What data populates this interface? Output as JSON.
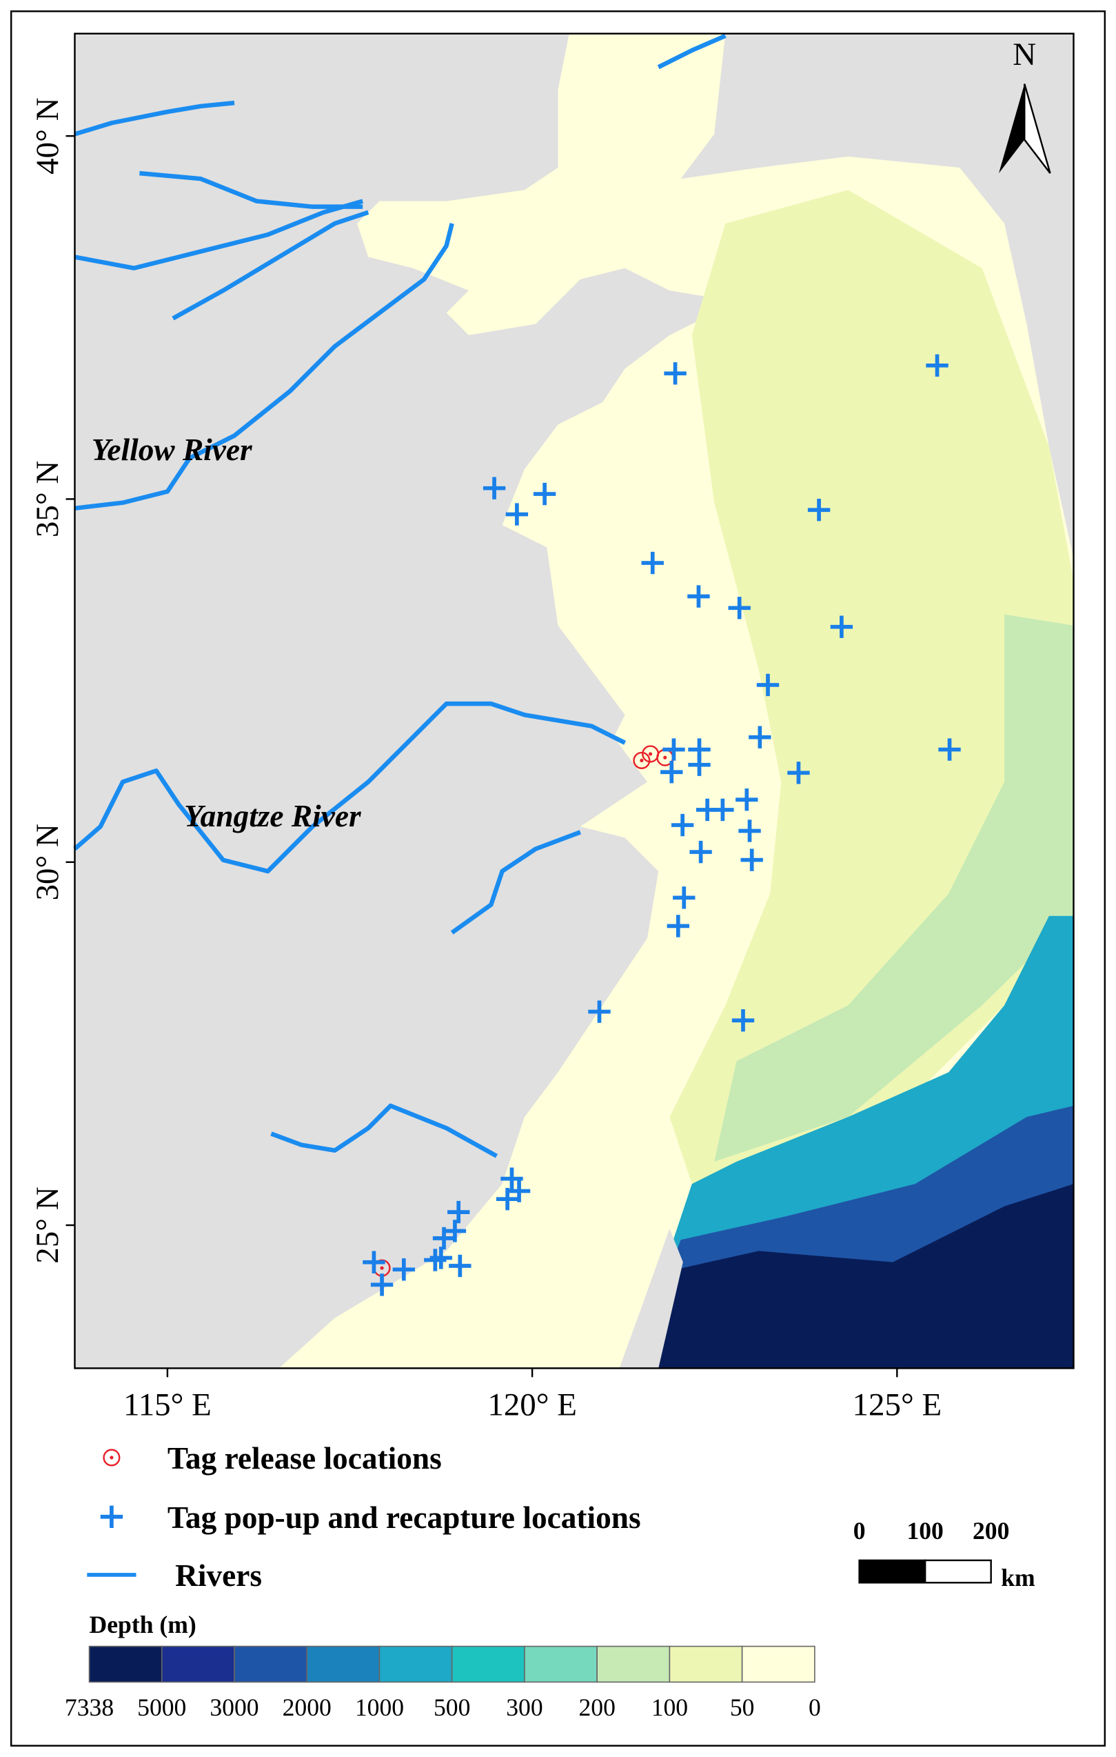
{
  "chart_data": {
    "type": "map",
    "xlim": [
      113.73,
      127.42
    ],
    "ylim": [
      23.03,
      41.41
    ],
    "xticks": [
      {
        "value": 115,
        "label": "115° E"
      },
      {
        "value": 120,
        "label": "120° E"
      },
      {
        "value": 125,
        "label": "125° E"
      }
    ],
    "yticks": [
      {
        "value": 40,
        "label": "40° N"
      },
      {
        "value": 35,
        "label": "35° N"
      },
      {
        "value": 30,
        "label": "30° N"
      },
      {
        "value": 25,
        "label": "25° N"
      }
    ],
    "annotations": [
      "Yellow River",
      "Yangtze River"
    ],
    "north_label": "N",
    "series": [
      {
        "name": "Tag release locations",
        "color": "#e8202a",
        "marker": "circle",
        "lon": [
          121.5,
          121.62,
          121.82,
          117.94
        ],
        "lat": [
          31.4,
          31.49,
          31.44,
          24.41
        ]
      },
      {
        "name": "Tag pop-up and recapture locations",
        "color": "#1a7fe8",
        "marker": "plus",
        "lon": [
          121.96,
          125.55,
          119.48,
          120.17,
          119.79,
          123.93,
          121.65,
          122.28,
          122.84,
          124.24,
          123.23,
          123.12,
          125.72,
          123.65,
          121.94,
          122.29,
          121.91,
          122.29,
          122.06,
          122.31,
          122.4,
          122.61,
          122.94,
          122.98,
          123.01,
          122.08,
          122.0,
          120.92,
          122.89,
          119.72,
          119.82,
          119.66,
          118.99,
          118.94,
          118.79,
          118.75,
          119.01,
          118.67,
          117.83,
          118.24,
          117.94
        ],
        "lat": [
          36.73,
          36.84,
          35.15,
          35.07,
          34.79,
          34.85,
          34.12,
          33.66,
          33.5,
          33.24,
          32.44,
          31.72,
          31.55,
          31.23,
          31.55,
          31.55,
          31.24,
          31.34,
          30.51,
          30.14,
          30.72,
          30.72,
          30.86,
          30.43,
          30.03,
          29.51,
          29.12,
          27.94,
          27.82,
          25.64,
          25.47,
          25.36,
          25.18,
          24.92,
          24.82,
          24.55,
          24.44,
          24.52,
          24.49,
          24.39,
          24.18
        ]
      },
      {
        "name": "Rivers",
        "color": "#1a8cf0",
        "marker": "line"
      }
    ],
    "scale_bar": {
      "ticks": [
        0,
        100,
        200
      ],
      "unit": "km",
      "xlim": [
        0,
        200
      ]
    },
    "depth_legend": {
      "title": "Depth (m)",
      "ticks": [
        7338,
        5000,
        3000,
        2000,
        1000,
        500,
        300,
        200,
        100,
        50,
        0
      ],
      "colors": [
        "#081d58",
        "#1a2f8f",
        "#1f55a6",
        "#1c82bb",
        "#1ea9c8",
        "#1cc3bf",
        "#76d8bd",
        "#c7eab4",
        "#eef6b4",
        "#ffffdc"
      ]
    }
  }
}
